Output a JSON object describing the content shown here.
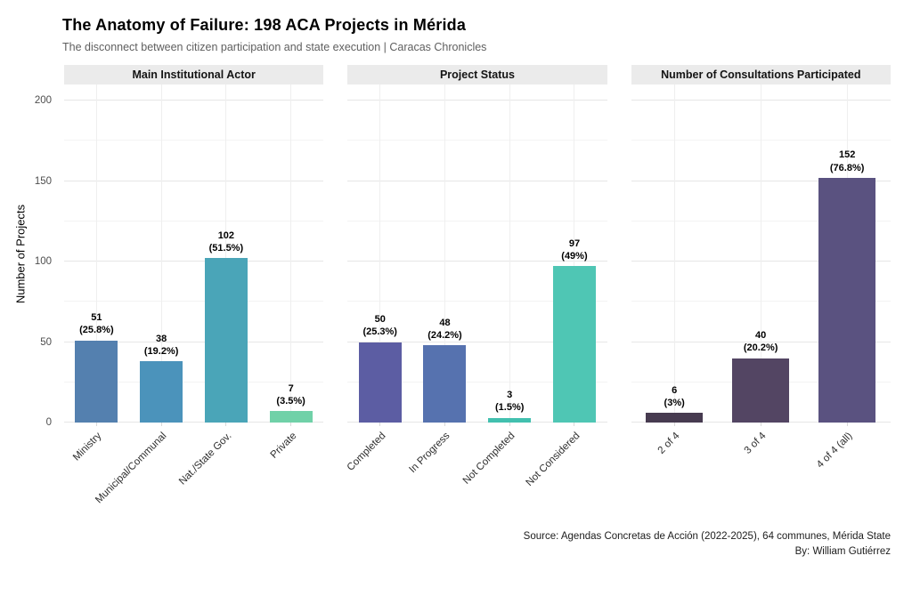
{
  "header": {
    "title": "The Anatomy of Failure: 198 ACA Projects in Mérida",
    "subtitle": "The disconnect between citizen participation and state execution | Caracas Chronicles"
  },
  "caption": {
    "line1": "Source: Agendas Concretas de Acción (2022-2025), 64 communes, Mérida State",
    "line2": "By: William Gutiérrez"
  },
  "chart_data": {
    "type": "bar",
    "ylabel": "Number of Projects",
    "ylim": [
      0,
      200
    ],
    "yticks": [
      0,
      50,
      100,
      150,
      200
    ],
    "yticks_minor": [
      25,
      75,
      125,
      175
    ],
    "grid": true,
    "legend": "none",
    "value_label_format": "count over (percent)",
    "facets": [
      {
        "title": "Main Institutional Actor",
        "categories": [
          "Ministry",
          "Municipal/Communal",
          "Nat./State Gov.",
          "Private"
        ],
        "values": [
          51,
          38,
          102,
          7
        ],
        "percents": [
          "25.8%",
          "19.2%",
          "51.5%",
          "3.5%"
        ],
        "colors": [
          "#5480af",
          "#4b93bb",
          "#4aa5b8",
          "#70d1a8"
        ]
      },
      {
        "title": "Project Status",
        "categories": [
          "Completed",
          "In Progress",
          "Not Completed",
          "Not Considered"
        ],
        "values": [
          50,
          48,
          3,
          97
        ],
        "percents": [
          "25.3%",
          "24.2%",
          "1.5%",
          "49%"
        ],
        "colors": [
          "#5c5da3",
          "#5672af",
          "#42c0af",
          "#4fc6b4"
        ]
      },
      {
        "title": "Number of Consultations Participated",
        "categories": [
          "2 of 4",
          "3 of 4",
          "4 of 4 (all)"
        ],
        "values": [
          6,
          40,
          152
        ],
        "percents": [
          "3%",
          "20.2%",
          "76.8%"
        ],
        "colors": [
          "#473b50",
          "#534563",
          "#5a5280"
        ]
      }
    ]
  }
}
